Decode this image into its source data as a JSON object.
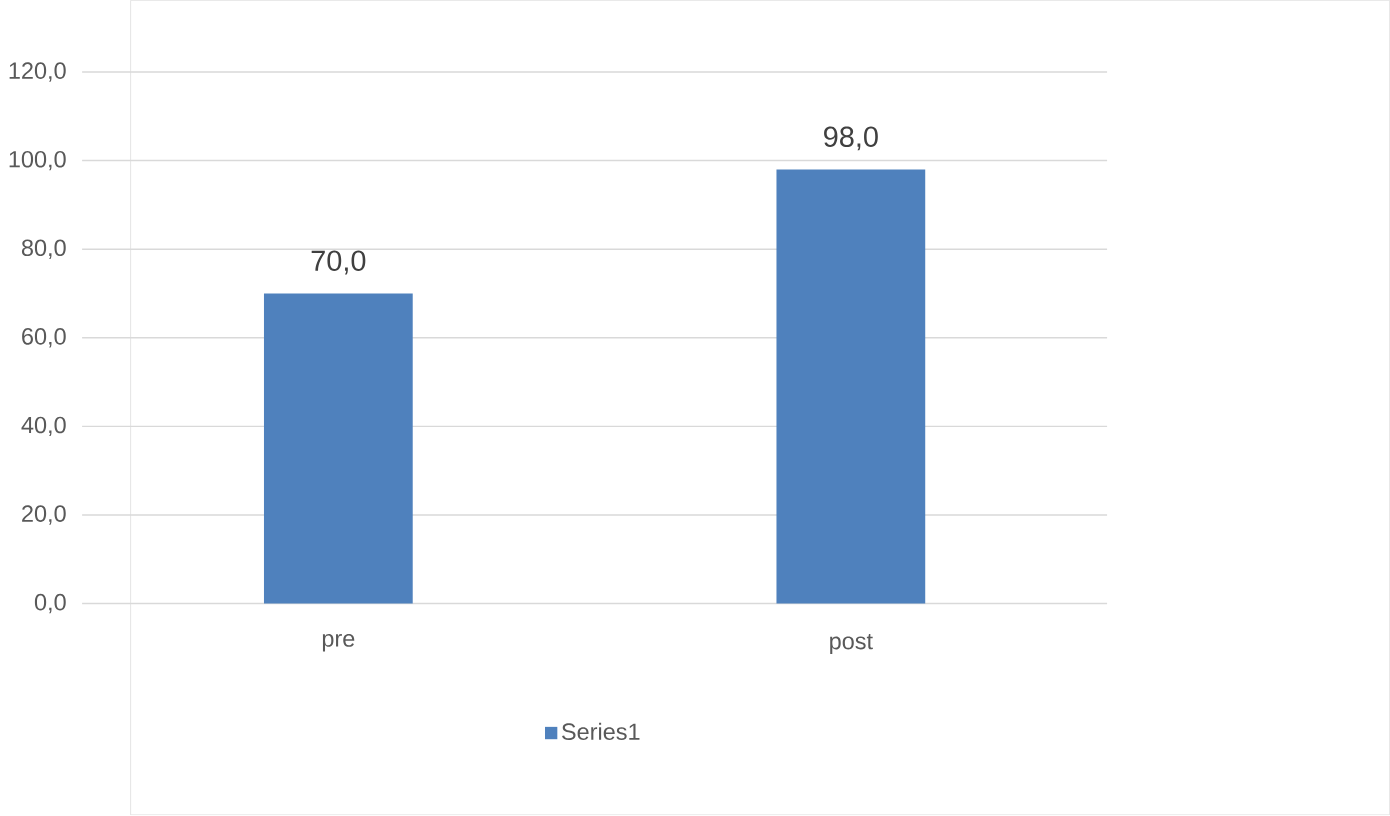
{
  "chart_data": {
    "type": "bar",
    "categories": [
      "pre",
      "post"
    ],
    "series": [
      {
        "name": "Series1",
        "color": "#4f81bd",
        "values": [
          70,
          98
        ],
        "value_labels": [
          "70,0",
          "98,0"
        ]
      }
    ],
    "ylim": [
      0,
      120
    ],
    "yticks": [
      {
        "value": 0,
        "label": "0,0"
      },
      {
        "value": 20,
        "label": "20,0"
      },
      {
        "value": 40,
        "label": "40,0"
      },
      {
        "value": 60,
        "label": "60,0"
      },
      {
        "value": 80,
        "label": "80,0"
      },
      {
        "value": 100,
        "label": "100,0"
      },
      {
        "value": 120,
        "label": "120,0"
      }
    ],
    "grid": "y",
    "legend": "bottom"
  }
}
